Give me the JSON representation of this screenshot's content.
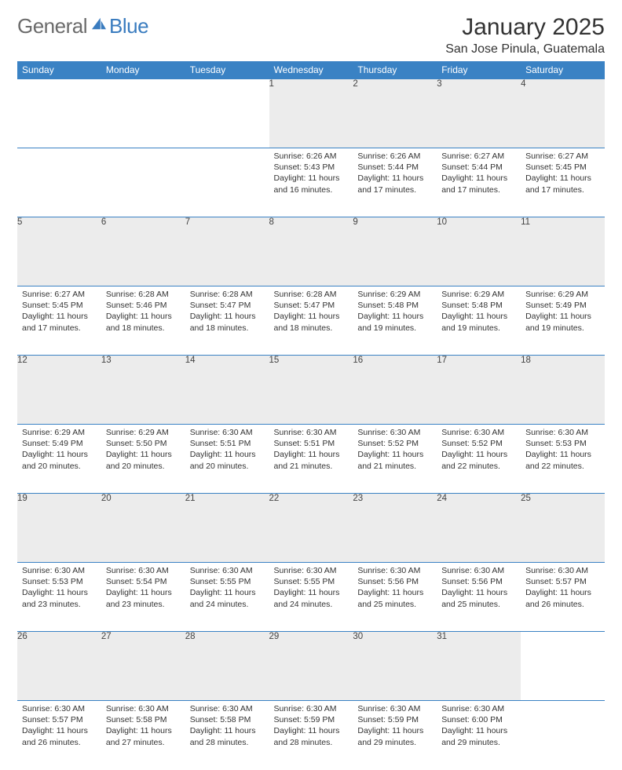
{
  "brand": {
    "general": "General",
    "blue": "Blue"
  },
  "header": {
    "month_title": "January 2025",
    "location": "San Jose Pinula, Guatemala"
  },
  "colors": {
    "header_bg": "#3a82c4",
    "header_text": "#ffffff",
    "daynum_bg": "#ececec",
    "row_border": "#3a82c4",
    "logo_gray": "#6b6b6b",
    "logo_blue": "#3a7cbf"
  },
  "day_headers": [
    "Sunday",
    "Monday",
    "Tuesday",
    "Wednesday",
    "Thursday",
    "Friday",
    "Saturday"
  ],
  "weeks": [
    [
      null,
      null,
      null,
      {
        "n": "1",
        "sunrise": "6:26 AM",
        "sunset": "5:43 PM",
        "daylight": "11 hours and 16 minutes."
      },
      {
        "n": "2",
        "sunrise": "6:26 AM",
        "sunset": "5:44 PM",
        "daylight": "11 hours and 17 minutes."
      },
      {
        "n": "3",
        "sunrise": "6:27 AM",
        "sunset": "5:44 PM",
        "daylight": "11 hours and 17 minutes."
      },
      {
        "n": "4",
        "sunrise": "6:27 AM",
        "sunset": "5:45 PM",
        "daylight": "11 hours and 17 minutes."
      }
    ],
    [
      {
        "n": "5",
        "sunrise": "6:27 AM",
        "sunset": "5:45 PM",
        "daylight": "11 hours and 17 minutes."
      },
      {
        "n": "6",
        "sunrise": "6:28 AM",
        "sunset": "5:46 PM",
        "daylight": "11 hours and 18 minutes."
      },
      {
        "n": "7",
        "sunrise": "6:28 AM",
        "sunset": "5:47 PM",
        "daylight": "11 hours and 18 minutes."
      },
      {
        "n": "8",
        "sunrise": "6:28 AM",
        "sunset": "5:47 PM",
        "daylight": "11 hours and 18 minutes."
      },
      {
        "n": "9",
        "sunrise": "6:29 AM",
        "sunset": "5:48 PM",
        "daylight": "11 hours and 19 minutes."
      },
      {
        "n": "10",
        "sunrise": "6:29 AM",
        "sunset": "5:48 PM",
        "daylight": "11 hours and 19 minutes."
      },
      {
        "n": "11",
        "sunrise": "6:29 AM",
        "sunset": "5:49 PM",
        "daylight": "11 hours and 19 minutes."
      }
    ],
    [
      {
        "n": "12",
        "sunrise": "6:29 AM",
        "sunset": "5:49 PM",
        "daylight": "11 hours and 20 minutes."
      },
      {
        "n": "13",
        "sunrise": "6:29 AM",
        "sunset": "5:50 PM",
        "daylight": "11 hours and 20 minutes."
      },
      {
        "n": "14",
        "sunrise": "6:30 AM",
        "sunset": "5:51 PM",
        "daylight": "11 hours and 20 minutes."
      },
      {
        "n": "15",
        "sunrise": "6:30 AM",
        "sunset": "5:51 PM",
        "daylight": "11 hours and 21 minutes."
      },
      {
        "n": "16",
        "sunrise": "6:30 AM",
        "sunset": "5:52 PM",
        "daylight": "11 hours and 21 minutes."
      },
      {
        "n": "17",
        "sunrise": "6:30 AM",
        "sunset": "5:52 PM",
        "daylight": "11 hours and 22 minutes."
      },
      {
        "n": "18",
        "sunrise": "6:30 AM",
        "sunset": "5:53 PM",
        "daylight": "11 hours and 22 minutes."
      }
    ],
    [
      {
        "n": "19",
        "sunrise": "6:30 AM",
        "sunset": "5:53 PM",
        "daylight": "11 hours and 23 minutes."
      },
      {
        "n": "20",
        "sunrise": "6:30 AM",
        "sunset": "5:54 PM",
        "daylight": "11 hours and 23 minutes."
      },
      {
        "n": "21",
        "sunrise": "6:30 AM",
        "sunset": "5:55 PM",
        "daylight": "11 hours and 24 minutes."
      },
      {
        "n": "22",
        "sunrise": "6:30 AM",
        "sunset": "5:55 PM",
        "daylight": "11 hours and 24 minutes."
      },
      {
        "n": "23",
        "sunrise": "6:30 AM",
        "sunset": "5:56 PM",
        "daylight": "11 hours and 25 minutes."
      },
      {
        "n": "24",
        "sunrise": "6:30 AM",
        "sunset": "5:56 PM",
        "daylight": "11 hours and 25 minutes."
      },
      {
        "n": "25",
        "sunrise": "6:30 AM",
        "sunset": "5:57 PM",
        "daylight": "11 hours and 26 minutes."
      }
    ],
    [
      {
        "n": "26",
        "sunrise": "6:30 AM",
        "sunset": "5:57 PM",
        "daylight": "11 hours and 26 minutes."
      },
      {
        "n": "27",
        "sunrise": "6:30 AM",
        "sunset": "5:58 PM",
        "daylight": "11 hours and 27 minutes."
      },
      {
        "n": "28",
        "sunrise": "6:30 AM",
        "sunset": "5:58 PM",
        "daylight": "11 hours and 28 minutes."
      },
      {
        "n": "29",
        "sunrise": "6:30 AM",
        "sunset": "5:59 PM",
        "daylight": "11 hours and 28 minutes."
      },
      {
        "n": "30",
        "sunrise": "6:30 AM",
        "sunset": "5:59 PM",
        "daylight": "11 hours and 29 minutes."
      },
      {
        "n": "31",
        "sunrise": "6:30 AM",
        "sunset": "6:00 PM",
        "daylight": "11 hours and 29 minutes."
      },
      null
    ]
  ],
  "labels": {
    "sunrise": "Sunrise:",
    "sunset": "Sunset:",
    "daylight": "Daylight:"
  }
}
